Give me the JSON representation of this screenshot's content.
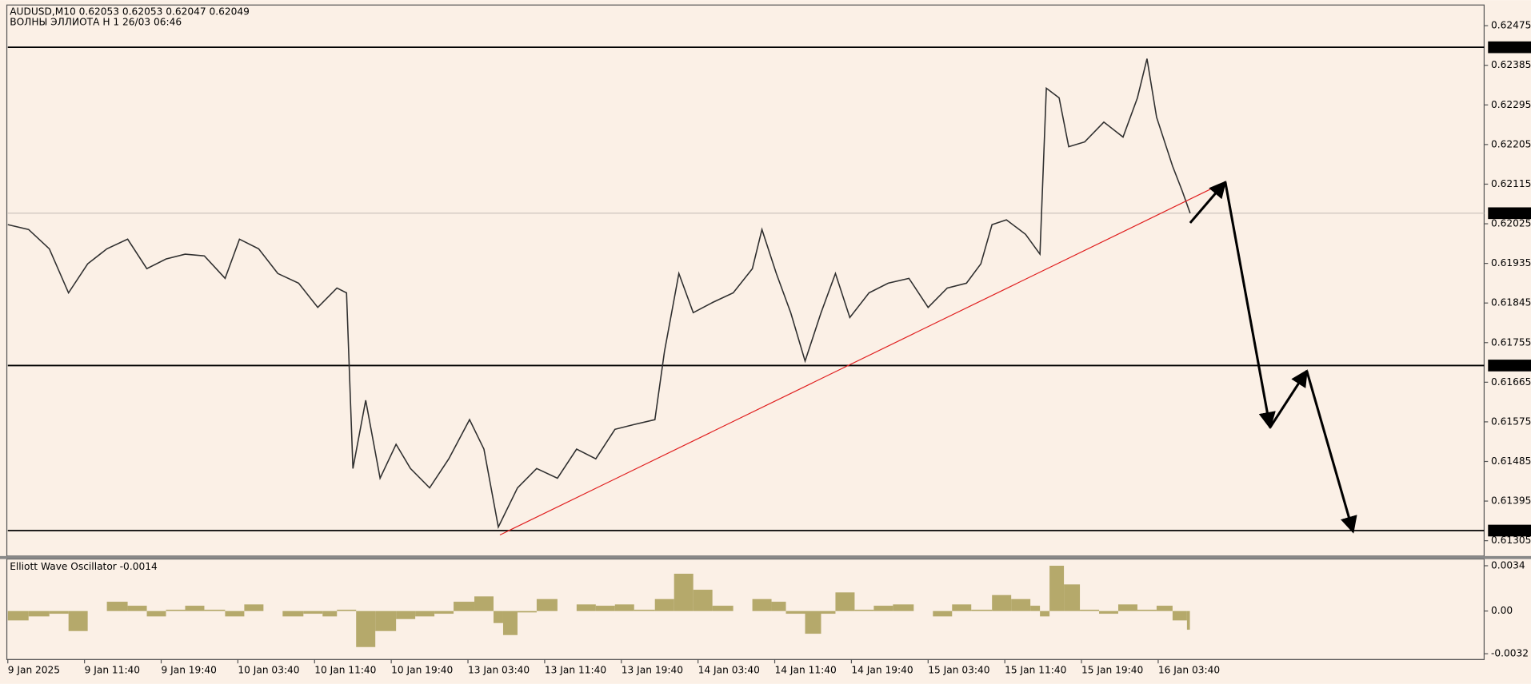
{
  "chart_data": [
    {
      "type": "line",
      "title": "AUDUSD,M10  0.62053 0.62053 0.62047 0.62049",
      "subtitle": "ВОЛНЫ ЭЛЛИОТА H 1 26/03 06:46",
      "color": "#303030",
      "x": [
        0,
        13,
        26,
        38,
        50,
        62,
        75,
        87,
        99,
        111,
        123,
        136,
        145,
        157,
        169,
        182,
        194,
        206,
        212,
        216,
        224,
        233,
        243,
        252,
        264,
        276,
        289,
        298,
        307,
        319,
        331,
        344,
        356,
        368,
        380,
        392,
        405,
        411,
        420,
        429,
        441,
        454,
        466,
        472,
        481,
        490,
        499,
        509,
        518,
        527,
        539,
        551,
        564,
        576,
        588,
        600,
        609,
        616,
        625,
        637,
        646,
        650,
        658,
        664,
        674,
        686,
        698,
        707,
        713,
        719,
        729,
        735,
        740
      ],
      "values": [
        0.62023,
        0.62012,
        0.61968,
        0.61868,
        0.61934,
        0.61968,
        0.6199,
        0.61923,
        0.61945,
        0.61956,
        0.61952,
        0.61901,
        0.6199,
        0.61968,
        0.61912,
        0.6189,
        0.61835,
        0.61879,
        0.61868,
        0.61469,
        0.61624,
        0.61447,
        0.61524,
        0.61469,
        0.61425,
        0.61491,
        0.6158,
        0.61513,
        0.61336,
        0.61425,
        0.61469,
        0.61447,
        0.61513,
        0.61491,
        0.61558,
        0.61569,
        0.6158,
        0.61735,
        0.61912,
        0.61823,
        0.61846,
        0.61868,
        0.61923,
        0.62012,
        0.61912,
        0.61823,
        0.61713,
        0.61823,
        0.61912,
        0.61812,
        0.61868,
        0.6189,
        0.61901,
        0.61835,
        0.61879,
        0.6189,
        0.61934,
        0.62023,
        0.62034,
        0.62001,
        0.61956,
        0.62333,
        0.62311,
        0.622,
        0.62211,
        0.62256,
        0.62222,
        0.62311,
        0.624,
        0.62267,
        0.62156,
        0.621,
        0.62049
      ],
      "xlim": [
        0,
        924
      ],
      "ylim": [
        0.6127,
        0.62522
      ],
      "yticks": [
        0.62475,
        0.62385,
        0.62295,
        0.62205,
        0.62115,
        0.62025,
        0.61935,
        0.61845,
        0.61755,
        0.61665,
        0.61575,
        0.61485,
        0.61395,
        0.61305
      ],
      "levels": [
        0.62426,
        0.61703,
        0.61328
      ],
      "current_price": 0.62049,
      "trendline": {
        "color": "#e02020",
        "x": [
          308,
          762
        ],
        "values": [
          0.61318,
          0.6212
        ]
      },
      "projection": {
        "color": "#000000",
        "x": [
          740,
          762,
          790,
          813,
          842
        ],
        "values": [
          0.62027,
          0.6212,
          0.61562,
          0.61691,
          0.61325
        ]
      }
    },
    {
      "type": "bar",
      "title": "Elliott Wave Oscillator -0.0014",
      "color": "#b5a96b",
      "x": [
        0,
        13,
        26,
        38,
        50,
        62,
        75,
        87,
        99,
        111,
        123,
        136,
        148,
        160,
        172,
        185,
        197,
        206,
        218,
        230,
        243,
        255,
        267,
        279,
        292,
        304,
        310,
        319,
        331,
        344,
        356,
        368,
        380,
        392,
        405,
        417,
        429,
        441,
        454,
        466,
        478,
        487,
        499,
        509,
        518,
        530,
        542,
        554,
        567,
        579,
        591,
        603,
        616,
        628,
        640,
        646,
        652,
        661,
        671,
        683,
        695,
        707,
        719,
        729,
        738
      ],
      "values": [
        -0.0007,
        -0.0004,
        -0.0002,
        -0.0015,
        0,
        0.0007,
        0.0004,
        -0.0004,
        0.0001,
        0.0004,
        0.0001,
        -0.0004,
        0.0005,
        0,
        -0.0004,
        -0.0002,
        -0.0004,
        0.0001,
        -0.0027,
        -0.0015,
        -0.0006,
        -0.0004,
        -0.0002,
        0.0007,
        0.0011,
        -0.0009,
        -0.0018,
        -0.0001,
        0.0009,
        0,
        0.0005,
        0.0004,
        0.0005,
        0.0001,
        0.0009,
        0.0028,
        0.0016,
        0.0004,
        0,
        0.0009,
        0.0007,
        -0.0002,
        -0.0017,
        -0.0002,
        0.0014,
        0.0001,
        0.0004,
        0.0005,
        0,
        -0.0004,
        0.0005,
        0.0001,
        0.0012,
        0.0009,
        0.0004,
        -0.0004,
        0.0034,
        0.002,
        0.0001,
        -0.0002,
        0.0005,
        0.0001,
        0.0004,
        -0.0007,
        -0.0014
      ],
      "xlim": [
        0,
        924
      ],
      "ylim": [
        -0.00356,
        0.00383
      ],
      "yticks": [
        0.0034,
        {
          "value": 0,
          "label": "0.00"
        },
        -0.0032
      ],
      "xticks": [
        {
          "value": 0,
          "label": "9 Jan 2025"
        },
        {
          "value": 48,
          "label": "9 Jan 11:40"
        },
        {
          "value": 96,
          "label": "9 Jan 19:40"
        },
        {
          "value": 144,
          "label": "10 Jan 03:40"
        },
        {
          "value": 192,
          "label": "10 Jan 11:40"
        },
        {
          "value": 240,
          "label": "10 Jan 19:40"
        },
        {
          "value": 288,
          "label": "13 Jan 03:40"
        },
        {
          "value": 336,
          "label": "13 Jan 11:40"
        },
        {
          "value": 384,
          "label": "13 Jan 19:40"
        },
        {
          "value": 432,
          "label": "14 Jan 03:40"
        },
        {
          "value": 480,
          "label": "14 Jan 11:40"
        },
        {
          "value": 528,
          "label": "14 Jan 19:40"
        },
        {
          "value": 576,
          "label": "15 Jan 03:40"
        },
        {
          "value": 624,
          "label": "15 Jan 11:40"
        },
        {
          "value": 672,
          "label": "15 Jan 19:40"
        },
        {
          "value": 720,
          "label": "16 Jan 03:40"
        }
      ]
    }
  ]
}
